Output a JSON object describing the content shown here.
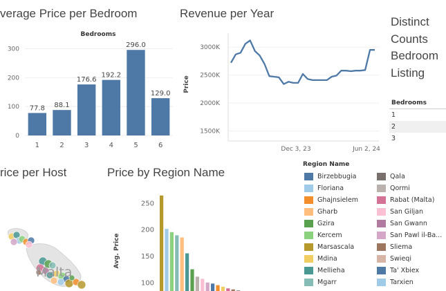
{
  "panels": {
    "avg_price_bedroom": {
      "title": "verage Price per Bedroom",
      "header": "Bedrooms"
    },
    "revenue_year": {
      "title": "Revenue per Year",
      "ylabel": "Price"
    },
    "distinct": {
      "title_lines": [
        "Distinct",
        "Counts",
        "Bedroom",
        "Listing"
      ],
      "table_header": "Bedrooms",
      "rows": [
        "1",
        "2",
        "3"
      ]
    },
    "price_host": {
      "title": "rice per Host",
      "map_label": "Malta"
    },
    "price_region": {
      "title": "Price by Region Name",
      "ylabel": "Avg. Price"
    },
    "legend": {
      "title": "Region Name",
      "items": [
        {
          "label": "Birzebbugia",
          "color": "#4e79a7"
        },
        {
          "label": "Floriana",
          "color": "#a0cbe8"
        },
        {
          "label": "Ghajnsielem",
          "color": "#f28e2b"
        },
        {
          "label": "Gharb",
          "color": "#ffbe7d"
        },
        {
          "label": "Gzira",
          "color": "#59a14f"
        },
        {
          "label": "Kercem",
          "color": "#8cd17d"
        },
        {
          "label": "Marsascala",
          "color": "#b6992d"
        },
        {
          "label": "Mdina",
          "color": "#f1ce63"
        },
        {
          "label": "Mellieha",
          "color": "#499894"
        },
        {
          "label": "Mgarr",
          "color": "#86bcb6"
        },
        {
          "label": "Qala",
          "color": "#79706e"
        },
        {
          "label": "Qormi",
          "color": "#bab0ac"
        },
        {
          "label": "Rabat (Malta)",
          "color": "#d37295"
        },
        {
          "label": "San Giljan",
          "color": "#fabfd2"
        },
        {
          "label": "San Gwann",
          "color": "#b07aa1"
        },
        {
          "label": "San Pawl il-Ba...",
          "color": "#d4a6c8"
        },
        {
          "label": "Sliema",
          "color": "#9d7660"
        },
        {
          "label": "Swieqi",
          "color": "#d7b5a6"
        },
        {
          "label": "Ta' Xbiex",
          "color": "#4e79a7"
        },
        {
          "label": "Tarxien",
          "color": "#a0cbe8"
        }
      ]
    }
  },
  "chart_data": [
    {
      "type": "bar",
      "title": "verage Price per Bedroom",
      "header": "Bedrooms",
      "categories": [
        "1",
        "2",
        "3",
        "4",
        "5",
        "6"
      ],
      "values": [
        77.8,
        88.1,
        176.6,
        192.2,
        296.0,
        129.0
      ],
      "value_labels": [
        "77.8",
        "88.1",
        "176.6",
        "192.2",
        "296.0",
        "129.0"
      ],
      "ytick_labels": [
        "300",
        "200",
        "100",
        "0"
      ],
      "ylim": [
        0,
        330
      ],
      "color": "#4e79a7",
      "grid": true
    },
    {
      "type": "line",
      "title": "Revenue per Year",
      "ylabel": "Price",
      "ytick_labels": [
        "3000K",
        "2500K",
        "2000K",
        "1500K"
      ],
      "yticks": [
        3000,
        2500,
        2000,
        1500
      ],
      "xtick_labels": [
        "Dec 3, 23",
        "Jun 2, 24"
      ],
      "ylim": [
        1320,
        3250
      ],
      "values": [
        2720,
        2870,
        2900,
        3060,
        3120,
        2930,
        2850,
        2700,
        2480,
        2470,
        2460,
        2340,
        2380,
        2360,
        2360,
        2520,
        2430,
        2410,
        2410,
        2410,
        2410,
        2470,
        2490,
        2580,
        2580,
        2570,
        2580,
        2580,
        2590,
        2950,
        2950
      ],
      "color": "#4e79a7",
      "grid": true
    },
    {
      "type": "bar",
      "title": "Price by Region Name",
      "ylabel": "Avg. Price",
      "ytick_labels": [
        "250",
        "200",
        "150",
        "100"
      ],
      "yticks": [
        250,
        200,
        150,
        100
      ],
      "ylim": [
        85,
        270
      ],
      "values": [
        265,
        202,
        196,
        190,
        186,
        156,
        126,
        112,
        108,
        101,
        99,
        96,
        93,
        90,
        88,
        86
      ],
      "colors": [
        "#b6992d",
        "#a0cbe8",
        "#8cd17d",
        "#86bcb6",
        "#ffbe7d",
        "#499894",
        "#59a14f",
        "#bab0ac",
        "#fabfd2",
        "#d4a6c8",
        "#4e79a7",
        "#f28e2b",
        "#f1ce63",
        "#d37295",
        "#9d7660",
        "#79706e"
      ]
    }
  ]
}
